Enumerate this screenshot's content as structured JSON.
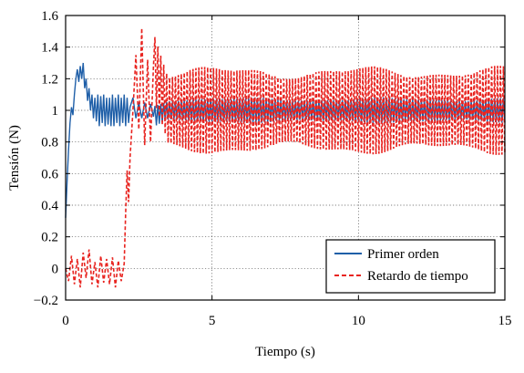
{
  "chart_data": {
    "type": "line",
    "title": "",
    "xlabel": "Tiempo (s)",
    "ylabel": "Tensión (N)",
    "xlim": [
      0,
      15
    ],
    "ylim": [
      -0.2,
      1.6
    ],
    "xticks": [
      0,
      5,
      10,
      15
    ],
    "xtick_labels": [
      "0",
      "5",
      "10",
      "15"
    ],
    "yticks": [
      -0.2,
      0,
      0.2,
      0.4,
      0.6,
      0.8,
      1,
      1.2,
      1.4,
      1.6
    ],
    "ytick_labels": [
      "−0.2",
      "0",
      "0.2",
      "0.4",
      "0.6",
      "0.8",
      "1",
      "1.2",
      "1.4",
      "1.6"
    ],
    "grid": true,
    "legend_position": "bottom-right",
    "series": [
      {
        "name": "Primer orden",
        "color": "#1f5fa8",
        "style": "solid",
        "x": [
          0,
          0.05,
          0.1,
          0.15,
          0.2,
          0.25,
          0.3,
          0.35,
          0.4,
          0.45,
          0.5,
          0.55,
          0.6,
          0.65,
          0.7,
          0.75,
          0.8,
          0.85,
          0.9,
          0.95,
          1.0,
          1.05,
          1.1,
          1.15,
          1.2,
          1.25,
          1.3,
          1.35,
          1.4,
          1.45,
          1.5,
          1.55,
          1.6,
          1.65,
          1.7,
          1.75,
          1.8,
          1.85,
          1.9,
          1.95,
          2.0,
          2.05,
          2.1,
          2.15,
          2.2,
          2.3,
          2.4,
          2.5,
          2.6,
          2.7,
          2.8,
          2.9,
          3.0,
          3.5,
          4.0,
          4.5,
          5.0,
          5.5,
          6.0,
          6.5,
          7.0,
          7.5,
          8.0,
          8.5,
          9.0,
          9.5,
          10.0,
          10.5,
          11.0,
          11.5,
          12.0,
          12.5,
          13.0,
          13.5,
          14.0,
          14.5,
          15.0
        ],
        "y": [
          0.32,
          0.55,
          0.75,
          0.92,
          1.02,
          0.97,
          1.1,
          1.2,
          1.26,
          1.18,
          1.28,
          1.2,
          1.3,
          1.14,
          1.2,
          1.06,
          1.14,
          1.0,
          1.1,
          0.95,
          1.08,
          0.93,
          1.1,
          0.9,
          1.09,
          0.92,
          1.1,
          0.9,
          1.08,
          0.91,
          1.08,
          0.9,
          1.1,
          0.9,
          1.08,
          0.92,
          1.1,
          0.9,
          1.08,
          0.92,
          1.1,
          0.9,
          1.08,
          0.92,
          1.02,
          1.08,
          0.95,
          1.05,
          0.95,
          1.05,
          0.95,
          1.04,
          0.96,
          1.0,
          1.0,
          1.0,
          1.0,
          1.0,
          1.0,
          1.0,
          1.0,
          1.0,
          1.0,
          1.0,
          1.0,
          1.0,
          1.0,
          1.0,
          1.0,
          1.0,
          1.0,
          1.0,
          1.0,
          1.0,
          1.0,
          1.0,
          1.0
        ],
        "oscillation_amplitude_after_3s": 0.07
      },
      {
        "name": "Retardo de tiempo",
        "color": "#e8231f",
        "style": "dashed",
        "x": [
          0,
          0.1,
          0.2,
          0.3,
          0.4,
          0.5,
          0.6,
          0.7,
          0.8,
          0.9,
          1.0,
          1.1,
          1.2,
          1.3,
          1.4,
          1.5,
          1.6,
          1.7,
          1.8,
          1.9,
          2.0,
          2.05,
          2.1,
          2.15,
          2.2,
          2.25,
          2.3,
          2.4,
          2.5,
          2.6,
          2.7,
          2.8,
          2.9,
          3.0,
          3.5,
          4.0,
          4.5,
          5.0,
          5.5,
          6.0,
          6.5,
          7.0,
          7.5,
          8.0,
          8.5,
          9.0,
          9.5,
          10.0,
          10.5,
          11.0,
          11.5,
          12.0,
          12.5,
          13.0,
          13.5,
          14.0,
          14.5,
          15.0
        ],
        "y": [
          0.0,
          -0.08,
          0.08,
          -0.1,
          0.06,
          -0.12,
          0.1,
          -0.06,
          0.12,
          -0.1,
          0.04,
          -0.12,
          0.08,
          -0.09,
          0.06,
          -0.1,
          0.07,
          -0.12,
          0.05,
          -0.08,
          0.03,
          0.35,
          0.62,
          0.42,
          0.7,
          0.85,
          1.0,
          1.35,
          0.88,
          1.52,
          0.78,
          1.32,
          0.8,
          1.28,
          1.0,
          1.0,
          1.0,
          1.0,
          1.0,
          1.0,
          1.0,
          1.0,
          1.0,
          1.0,
          1.0,
          1.0,
          1.0,
          1.0,
          1.0,
          1.0,
          1.0,
          1.0,
          1.0,
          1.0,
          1.0,
          1.0,
          1.0,
          1.0
        ],
        "oscillation_amplitude_after_3s": 0.24
      }
    ]
  }
}
